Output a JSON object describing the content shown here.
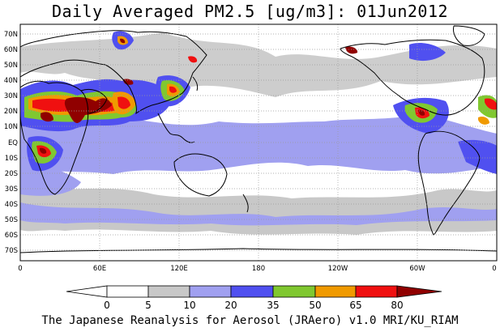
{
  "title": "Daily Averaged PM2.5 [ug/m3]: 01Jun2012",
  "credit": "The Japanese Reanalysis for Aerosol (JRAero) v1.0 MRI/KU_RIAM",
  "lat_labels": [
    "70N",
    "60N",
    "50N",
    "40N",
    "30N",
    "20N",
    "10N",
    "EQ",
    "10S",
    "20S",
    "30S",
    "40S",
    "50S",
    "60S",
    "70S"
  ],
  "lon_labels": [
    "0",
    "60E",
    "120E",
    "180",
    "120W",
    "60W",
    "0"
  ],
  "colorbar": {
    "levels": [
      "0",
      "5",
      "10",
      "20",
      "35",
      "50",
      "65",
      "80"
    ],
    "colors": [
      "#ffffff",
      "#c8c8c8",
      "#a0a0f0",
      "#5050f0",
      "#80c830",
      "#f09a00",
      "#f01010",
      "#900000"
    ]
  },
  "map_colors": {
    "ocean": "#ffffff",
    "coast": "#000000",
    "grid": "#9a9a9a"
  }
}
